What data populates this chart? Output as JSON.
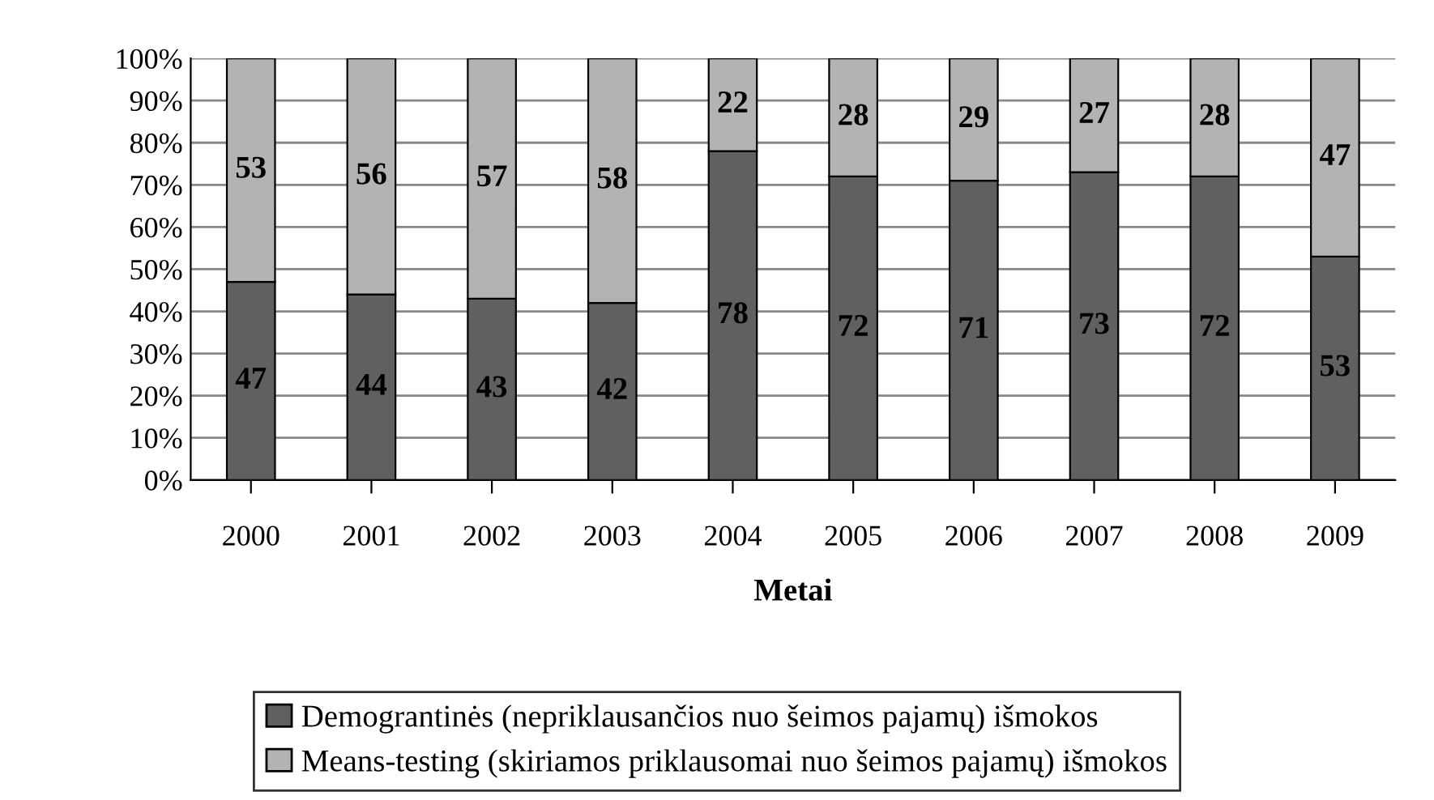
{
  "chart_data": {
    "type": "bar",
    "stacked": true,
    "xlabel": "Metai",
    "categories": [
      "2000",
      "2001",
      "2002",
      "2003",
      "2004",
      "2005",
      "2006",
      "2007",
      "2008",
      "2009"
    ],
    "series": [
      {
        "name": "Demograntinės (nepriklausančios nuo šeimos pajamų) išmokos",
        "color": "#606060",
        "values": [
          47,
          44,
          43,
          42,
          78,
          72,
          71,
          73,
          72,
          53
        ]
      },
      {
        "name": "Means-testing (skiriamos priklausomai nuo šeimos pajamų) išmokos",
        "color": "#b3b3b3",
        "values": [
          53,
          56,
          57,
          58,
          22,
          28,
          29,
          27,
          28,
          47
        ]
      }
    ],
    "ylim": [
      0,
      100
    ],
    "yticks": [
      {
        "value": 0,
        "label": "0%"
      },
      {
        "value": 10,
        "label": "10%"
      },
      {
        "value": 20,
        "label": "20%"
      },
      {
        "value": 30,
        "label": "30%"
      },
      {
        "value": 40,
        "label": "40%"
      },
      {
        "value": 50,
        "label": "50%"
      },
      {
        "value": 60,
        "label": "60%"
      },
      {
        "value": 70,
        "label": "70%"
      },
      {
        "value": 80,
        "label": "80%"
      },
      {
        "value": 90,
        "label": "90%"
      },
      {
        "value": 100,
        "label": "100%"
      }
    ],
    "grid": "y",
    "legend": "bottom",
    "data_labels": true
  }
}
